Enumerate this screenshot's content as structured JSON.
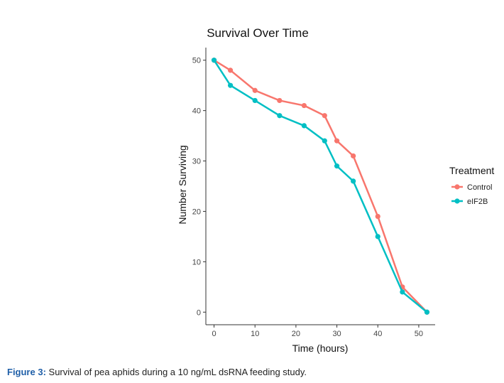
{
  "chart_data": {
    "type": "line",
    "title": "Survival Over Time",
    "xlabel": "Time (hours)",
    "ylabel": "Number Surviving",
    "xlim": [
      -2,
      54
    ],
    "ylim": [
      -2.5,
      52.5
    ],
    "xticks": [
      0,
      10,
      20,
      30,
      40,
      50
    ],
    "yticks": [
      0,
      10,
      20,
      30,
      40,
      50
    ],
    "grid": false,
    "legend": {
      "title": "Treatment",
      "position": "right"
    },
    "series": [
      {
        "name": "Control",
        "color": "#F8766D",
        "x": [
          0,
          4,
          10,
          16,
          22,
          27,
          30,
          34,
          40,
          46,
          52
        ],
        "y": [
          50,
          48,
          44,
          42,
          41,
          39,
          34,
          31,
          19,
          5,
          0
        ]
      },
      {
        "name": "eIF2B",
        "color": "#00BFC4",
        "x": [
          0,
          4,
          10,
          16,
          22,
          27,
          30,
          34,
          40,
          46,
          52
        ],
        "y": [
          50,
          45,
          42,
          39,
          37,
          34,
          29,
          26,
          15,
          4,
          0
        ]
      }
    ]
  },
  "caption": {
    "label": "Figure 3:",
    "text": " Survival of pea aphids during a 10 ng/mL dsRNA feeding study."
  }
}
